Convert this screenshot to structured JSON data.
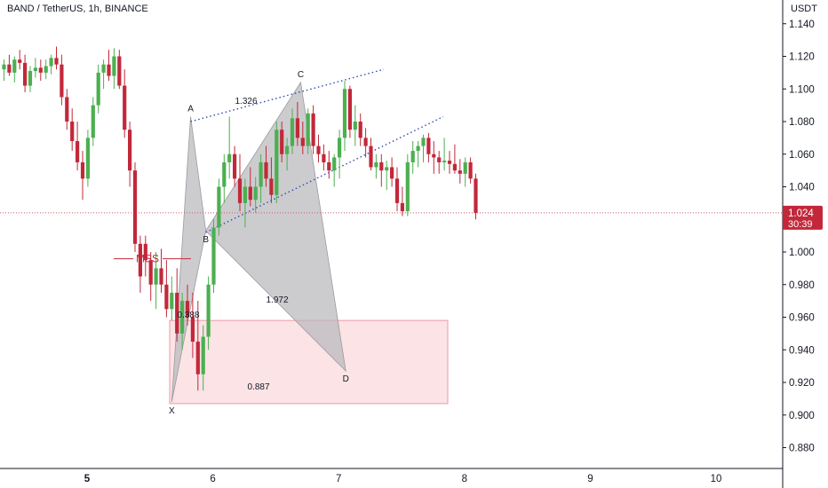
{
  "header": {
    "symbol_title": "BAND / TetherUS, 1h, BINANCE",
    "currency": "USDT"
  },
  "colors": {
    "up": "#4caf50",
    "down": "#c2283a",
    "pattern_fill": "#b8b9bd",
    "zone_fill": "#fbe3e6",
    "zone_border": "#ef9aa4",
    "dotted_line": "#3249b3",
    "price_line": "#e05566",
    "price_badge": "#c2283a"
  },
  "chart_data": {
    "type": "candlestick",
    "title": "BAND / TetherUS, 1h, BINANCE",
    "ylabel": "USDT",
    "ylim": [
      0.87,
      1.15
    ],
    "y_ticks": [
      "1.140",
      "1.120",
      "1.100",
      "1.080",
      "1.060",
      "1.040",
      "1.000",
      "0.980",
      "0.960",
      "0.940",
      "0.920",
      "0.900",
      "0.880"
    ],
    "x_ticks": [
      {
        "label": "5",
        "day": 5,
        "bold": true
      },
      {
        "label": "6",
        "day": 6,
        "bold": false
      },
      {
        "label": "7",
        "day": 7,
        "bold": false
      },
      {
        "label": "8",
        "day": 8,
        "bold": false
      },
      {
        "label": "9",
        "day": 9,
        "bold": false
      },
      {
        "label": "10",
        "day": 10,
        "bold": false
      }
    ],
    "current_price": {
      "value": 1.024,
      "label": "1.024",
      "countdown": "30:39"
    },
    "candles": [
      [
        1.112,
        1.118,
        1.105,
        1.115
      ],
      [
        1.115,
        1.121,
        1.108,
        1.11
      ],
      [
        1.11,
        1.12,
        1.104,
        1.118
      ],
      [
        1.118,
        1.124,
        1.112,
        1.116
      ],
      [
        1.116,
        1.121,
        1.098,
        1.102
      ],
      [
        1.102,
        1.114,
        1.098,
        1.111
      ],
      [
        1.111,
        1.119,
        1.107,
        1.113
      ],
      [
        1.113,
        1.118,
        1.105,
        1.11
      ],
      [
        1.11,
        1.118,
        1.106,
        1.114
      ],
      [
        1.114,
        1.121,
        1.109,
        1.119
      ],
      [
        1.119,
        1.126,
        1.112,
        1.115
      ],
      [
        1.115,
        1.121,
        1.09,
        1.095
      ],
      [
        1.095,
        1.1,
        1.075,
        1.08
      ],
      [
        1.08,
        1.088,
        1.062,
        1.068
      ],
      [
        1.068,
        1.08,
        1.05,
        1.055
      ],
      [
        1.055,
        1.062,
        1.032,
        1.045
      ],
      [
        1.045,
        1.075,
        1.04,
        1.07
      ],
      [
        1.07,
        1.095,
        1.065,
        1.09
      ],
      [
        1.09,
        1.115,
        1.085,
        1.11
      ],
      [
        1.11,
        1.118,
        1.1,
        1.115
      ],
      [
        1.115,
        1.124,
        1.105,
        1.108
      ],
      [
        1.108,
        1.125,
        1.1,
        1.12
      ],
      [
        1.12,
        1.124,
        1.1,
        1.102
      ],
      [
        1.102,
        1.112,
        1.07,
        1.075
      ],
      [
        1.075,
        1.08,
        1.04,
        1.05
      ],
      [
        1.05,
        1.055,
        1.0,
        1.005
      ],
      [
        1.005,
        1.01,
        0.975,
        0.985
      ],
      [
        1.005,
        1.01,
        0.985,
        0.995
      ],
      [
        0.995,
        1.0,
        0.97,
        0.98
      ],
      [
        0.98,
        1.0,
        0.965,
        0.99
      ],
      [
        0.99,
        1.002,
        0.975,
        0.98
      ],
      [
        0.98,
        0.995,
        0.96,
        0.965
      ],
      [
        0.965,
        0.985,
        0.958,
        0.975
      ],
      [
        0.975,
        0.99,
        0.945,
        0.95
      ],
      [
        0.95,
        0.975,
        0.94,
        0.97
      ],
      [
        0.97,
        0.98,
        0.955,
        0.96
      ],
      [
        0.96,
        0.975,
        0.935,
        0.945
      ],
      [
        0.945,
        0.97,
        0.915,
        0.925
      ],
      [
        0.925,
        0.955,
        0.915,
        0.948
      ],
      [
        0.948,
        0.985,
        0.94,
        0.98
      ],
      [
        0.98,
        1.02,
        0.975,
        1.015
      ],
      [
        1.015,
        1.045,
        1.01,
        1.04
      ],
      [
        1.04,
        1.06,
        1.03,
        1.055
      ],
      [
        1.055,
        1.083,
        1.045,
        1.06
      ],
      [
        1.06,
        1.065,
        1.04,
        1.045
      ],
      [
        1.045,
        1.06,
        1.025,
        1.03
      ],
      [
        1.03,
        1.045,
        1.015,
        1.04
      ],
      [
        1.04,
        1.052,
        1.028,
        1.032
      ],
      [
        1.032,
        1.046,
        1.024,
        1.04
      ],
      [
        1.04,
        1.06,
        1.03,
        1.055
      ],
      [
        1.055,
        1.065,
        1.04,
        1.045
      ],
      [
        1.045,
        1.058,
        1.03,
        1.035
      ],
      [
        1.035,
        1.08,
        1.03,
        1.075
      ],
      [
        1.075,
        1.08,
        1.055,
        1.06
      ],
      [
        1.06,
        1.07,
        1.05,
        1.065
      ],
      [
        1.065,
        1.088,
        1.06,
        1.082
      ],
      [
        1.082,
        1.092,
        1.065,
        1.07
      ],
      [
        1.07,
        1.08,
        1.06,
        1.065
      ],
      [
        1.065,
        1.088,
        1.06,
        1.085
      ],
      [
        1.085,
        1.09,
        1.06,
        1.065
      ],
      [
        1.065,
        1.072,
        1.055,
        1.06
      ],
      [
        1.06,
        1.066,
        1.05,
        1.055
      ],
      [
        1.055,
        1.062,
        1.045,
        1.05
      ],
      [
        1.05,
        1.06,
        1.04,
        1.058
      ],
      [
        1.058,
        1.075,
        1.045,
        1.07
      ],
      [
        1.07,
        1.105,
        1.062,
        1.1
      ],
      [
        1.1,
        1.102,
        1.07,
        1.075
      ],
      [
        1.075,
        1.09,
        1.065,
        1.08
      ],
      [
        1.08,
        1.085,
        1.065,
        1.07
      ],
      [
        1.07,
        1.076,
        1.058,
        1.065
      ],
      [
        1.065,
        1.07,
        1.05,
        1.052
      ],
      [
        1.052,
        1.06,
        1.045,
        1.055
      ],
      [
        1.055,
        1.06,
        1.04,
        1.05
      ],
      [
        1.05,
        1.056,
        1.038,
        1.052
      ],
      [
        1.052,
        1.058,
        1.04,
        1.045
      ],
      [
        1.045,
        1.052,
        1.025,
        1.03
      ],
      [
        1.03,
        1.04,
        1.022,
        1.025
      ],
      [
        1.025,
        1.06,
        1.022,
        1.055
      ],
      [
        1.055,
        1.068,
        1.048,
        1.062
      ],
      [
        1.062,
        1.068,
        1.052,
        1.065
      ],
      [
        1.065,
        1.072,
        1.055,
        1.07
      ],
      [
        1.07,
        1.073,
        1.055,
        1.06
      ],
      [
        1.06,
        1.068,
        1.048,
        1.058
      ],
      [
        1.058,
        1.062,
        1.048,
        1.055
      ],
      [
        1.055,
        1.07,
        1.05,
        1.056
      ],
      [
        1.056,
        1.062,
        1.048,
        1.054
      ],
      [
        1.054,
        1.066,
        1.048,
        1.05
      ],
      [
        1.05,
        1.057,
        1.042,
        1.048
      ],
      [
        1.048,
        1.058,
        1.04,
        1.055
      ],
      [
        1.055,
        1.058,
        1.042,
        1.045
      ],
      [
        1.045,
        1.048,
        1.02,
        1.024
      ]
    ],
    "harmonic_pattern": {
      "points": [
        {
          "label": "X",
          "price": 0.908
        },
        {
          "label": "A",
          "price": 1.083
        },
        {
          "label": "B",
          "price": 1.013
        },
        {
          "label": "C",
          "price": 1.104
        },
        {
          "label": "D",
          "price": 0.927
        }
      ],
      "ratios": [
        {
          "label": "0.388"
        },
        {
          "label": "1.326"
        },
        {
          "label": "1.972"
        },
        {
          "label": "0.887"
        }
      ]
    },
    "mss": {
      "label": "MSS",
      "price": 0.998
    },
    "zone": {
      "top": 0.958,
      "bottom": 0.907
    },
    "channel_lines": [
      {
        "from": {
          "point": "A",
          "price": 1.08
        },
        "to": {
          "price": 1.112
        }
      },
      {
        "from": {
          "point": "B",
          "price": 1.012
        },
        "to": {
          "price": 1.083
        }
      }
    ]
  }
}
